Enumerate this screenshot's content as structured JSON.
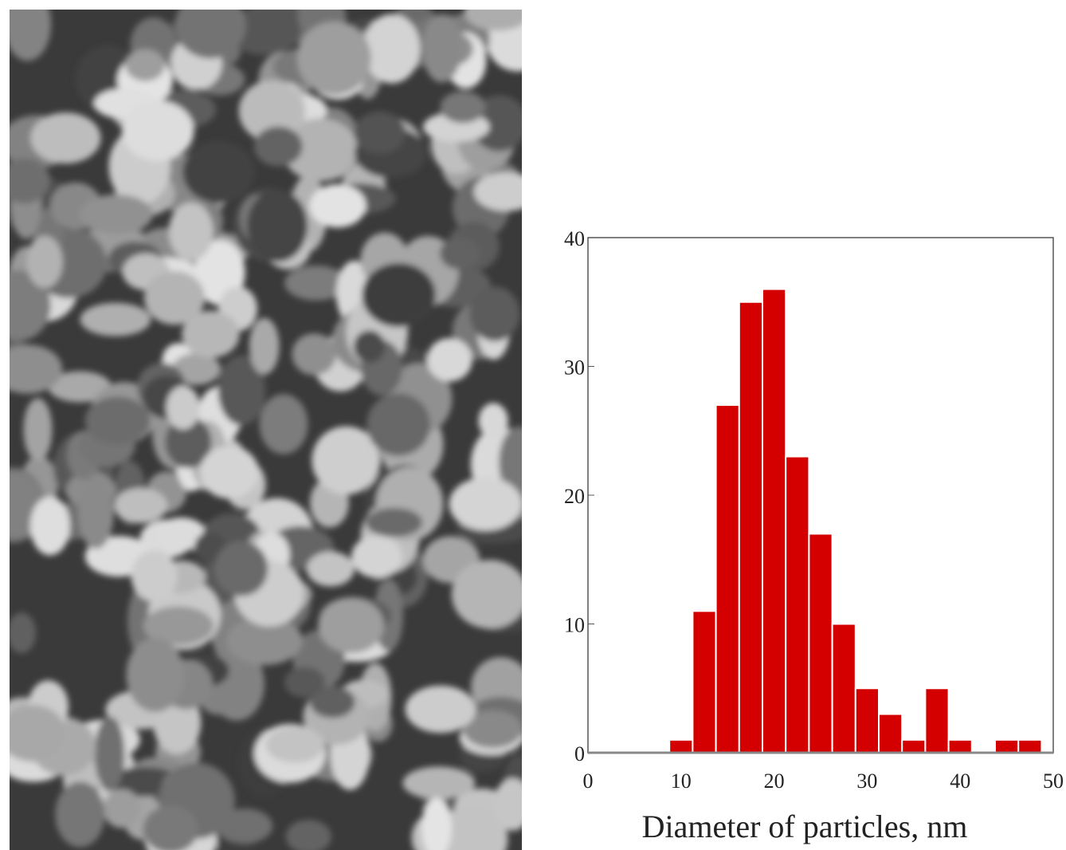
{
  "chart_data": {
    "type": "histogram",
    "xlabel": "Diameter of particles, nm",
    "bins": [
      8.75,
      11.25,
      13.75,
      16.25,
      18.75,
      21.25,
      23.75,
      26.25,
      28.75,
      31.25,
      33.75,
      36.25,
      38.75,
      41.25,
      43.75,
      46.25,
      48.75
    ],
    "values": [
      1,
      11,
      27,
      35,
      36,
      23,
      17,
      10,
      5,
      3,
      1,
      5,
      1,
      0,
      1,
      1
    ],
    "color": "#d40000",
    "xlim": [
      0,
      50
    ],
    "xticks": [
      0,
      10,
      20,
      30,
      40,
      50
    ],
    "ylim": [
      0,
      40
    ],
    "yticks": [
      0,
      10,
      20,
      30,
      40
    ]
  }
}
